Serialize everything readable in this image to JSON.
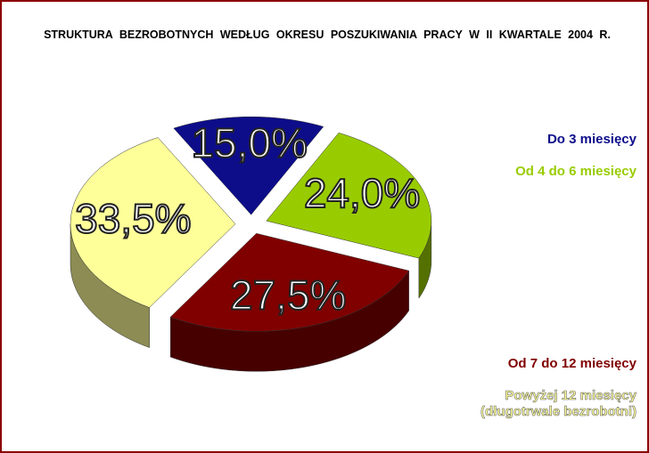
{
  "chart_data": {
    "type": "pie3d",
    "title": "STRUKTURA BEZROBOTNYCH WEDŁUG OKRESU POSZUKIWANIA PRACY W II KWARTALE 2004 R.",
    "categories": [
      "Do 3 miesięcy",
      "Od 4 do 6 miesięcy",
      "Od 7 do 12 miesięcy",
      "Powyżej 12 miesięcy (długotrwale bezrobotni)"
    ],
    "values": [
      15.0,
      24.0,
      27.5,
      33.5
    ],
    "value_labels": [
      "15,0%",
      "24,0%",
      "27,5%",
      "33,5%"
    ],
    "colors": [
      "#0d0d8a",
      "#99cc00",
      "#800000",
      "#ffff99"
    ]
  }
}
